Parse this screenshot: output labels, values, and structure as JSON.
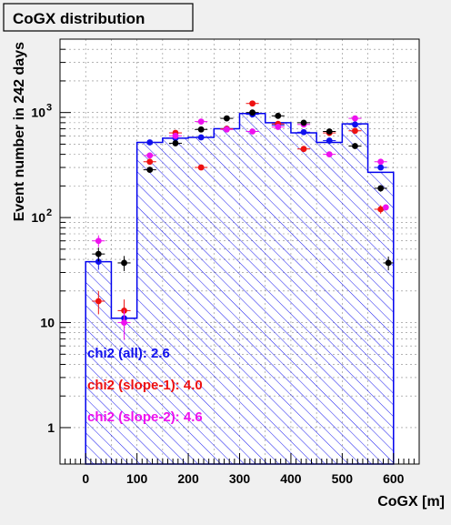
{
  "chart_data": {
    "type": "histogram",
    "title": "CoGX distribution",
    "xlabel": "CoGX [m]",
    "ylabel": "Event number in 242 days",
    "xlim": [
      -50,
      650
    ],
    "ylim": [
      0.45,
      5000
    ],
    "y_scale": "log",
    "grid": true,
    "x_ticks": [
      0,
      100,
      200,
      300,
      400,
      500,
      600
    ],
    "x_tick_labels": [
      "0",
      "100",
      "200",
      "300",
      "400",
      "500",
      "600"
    ],
    "y_ticks": [
      1,
      10,
      100,
      1000
    ],
    "y_tick_labels": [
      "1",
      "10",
      "10²",
      "10³"
    ],
    "bin_edges": [
      0,
      50,
      100,
      150,
      200,
      250,
      300,
      350,
      400,
      450,
      500,
      550,
      600
    ],
    "histogram": {
      "color": "#0000ee",
      "values": [
        38,
        11,
        520,
        570,
        580,
        700,
        980,
        800,
        640,
        520,
        780,
        270
      ]
    },
    "series": [
      {
        "name": "all",
        "color": "#1010ee",
        "x": [
          25,
          75,
          125,
          175,
          225,
          275,
          325,
          375,
          425,
          475,
          525,
          575
        ],
        "y": [
          38,
          11,
          520,
          570,
          580,
          700,
          960,
          760,
          650,
          540,
          770,
          300
        ]
      },
      {
        "name": "slope-1",
        "color": "#ee1111",
        "x": [
          25,
          75,
          125,
          175,
          225,
          275,
          325,
          375,
          425,
          475,
          525,
          575
        ],
        "y": [
          16,
          13,
          340,
          640,
          300,
          700,
          1220,
          780,
          450,
          640,
          670,
          120
        ]
      },
      {
        "name": "slope-2",
        "color": "#ee11ee",
        "x": [
          25,
          75,
          125,
          175,
          225,
          275,
          325,
          375,
          425,
          475,
          525,
          575
        ],
        "y": [
          60,
          10,
          390,
          600,
          820,
          690,
          660,
          730,
          770,
          400,
          880,
          340
        ]
      },
      {
        "name": "data",
        "color": "#000000",
        "x": [
          25,
          75,
          125,
          175,
          225,
          275,
          325,
          375,
          425,
          475,
          525,
          575
        ],
        "y": [
          45,
          37,
          285,
          510,
          690,
          880,
          1000,
          930,
          800,
          660,
          480,
          190
        ],
        "extra": {
          "x": 590,
          "y": 37
        },
        "extra_pink": {
          "x": 585,
          "y": 125
        }
      }
    ],
    "annotations": [
      {
        "text": "chi2 (all): 2.6",
        "color": "#1010ee"
      },
      {
        "text": "chi2 (slope-1): 4.0",
        "color": "#ee1111"
      },
      {
        "text": "chi2 (slope-2): 4.6",
        "color": "#ee11ee"
      }
    ]
  }
}
